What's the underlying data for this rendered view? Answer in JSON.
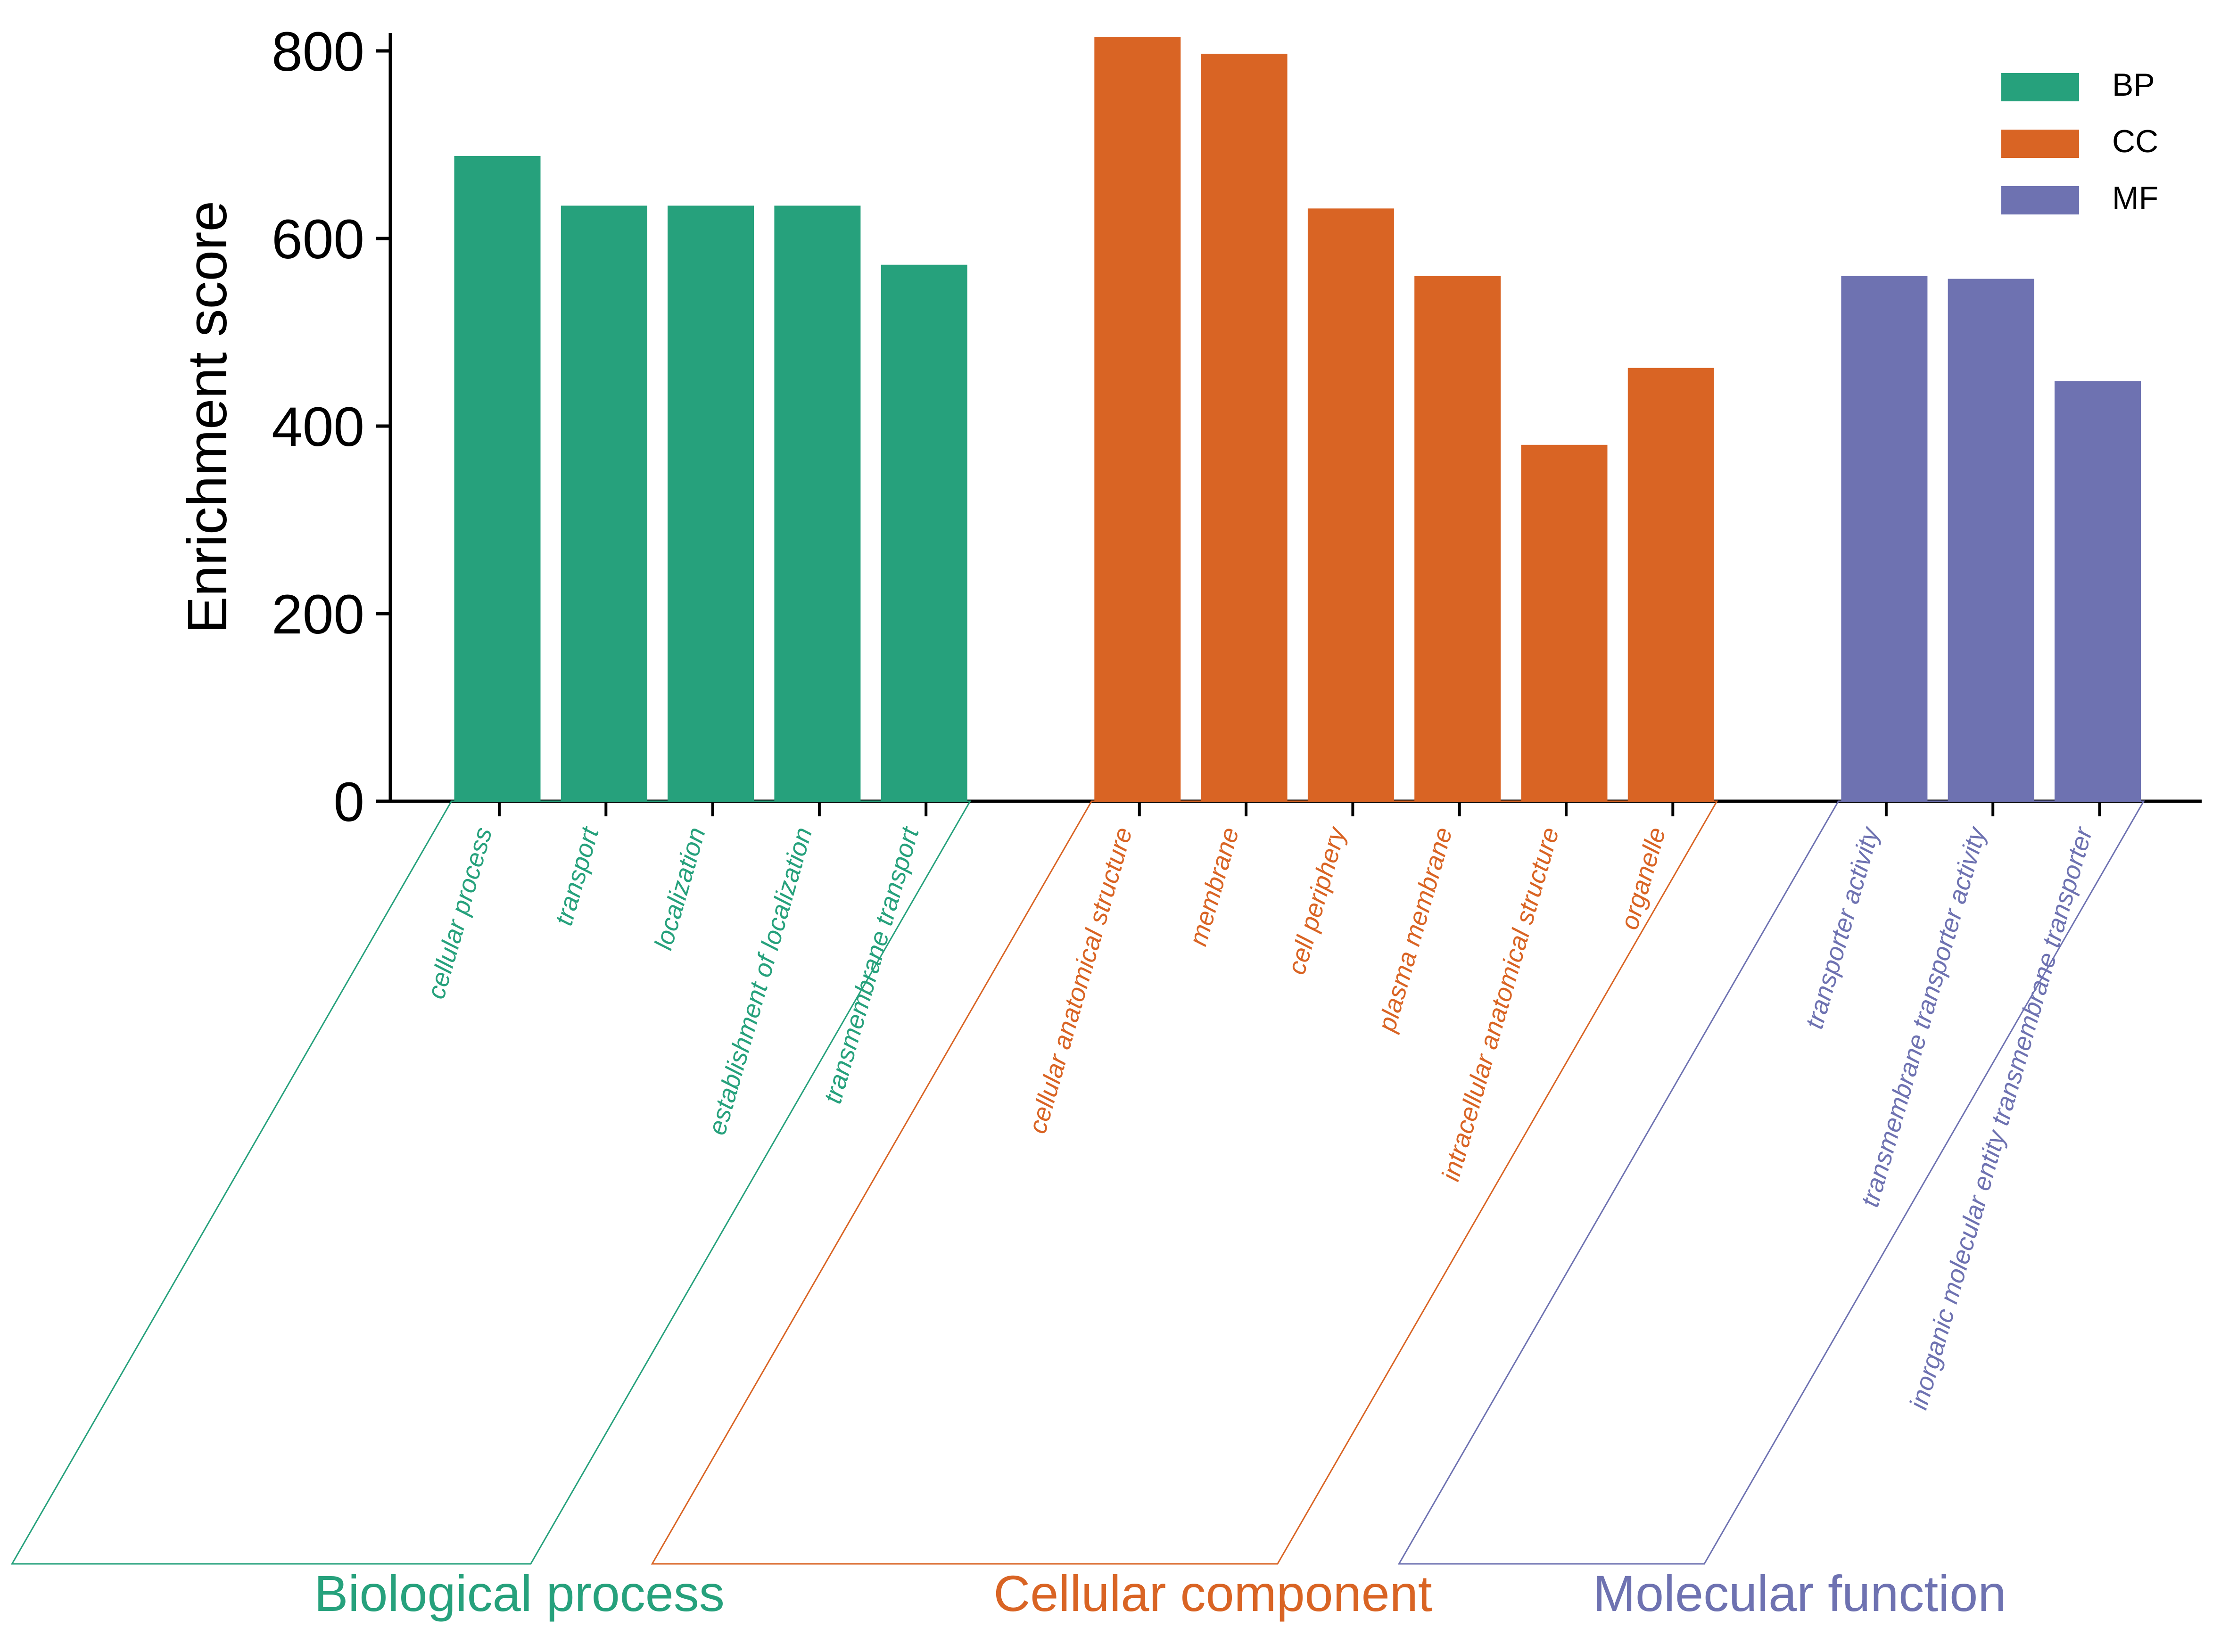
{
  "chart_data": {
    "type": "bar",
    "ylabel": "Enrichment score",
    "ylim": [
      0,
      800
    ],
    "yticks": [
      "0",
      "200",
      "400",
      "600",
      "800"
    ],
    "legend": {
      "placement": "top-right",
      "entries": [
        {
          "label": "BP",
          "color": "#26a17c"
        },
        {
          "label": "CC",
          "color": "#d96424"
        },
        {
          "label": "MF",
          "color": "#6e72b1"
        }
      ]
    },
    "groups": [
      {
        "name": "Biological process",
        "color": "#26a17c",
        "categories": [
          "cellular process",
          "transport",
          "localization",
          "establishment of localization",
          "transmembrane transport"
        ],
        "values": [
          688,
          635,
          635,
          635,
          572
        ]
      },
      {
        "name": "Cellular component",
        "color": "#d96424",
        "categories": [
          "cellular anatomical structure",
          "membrane",
          "cell periphery",
          "plasma membrane",
          "intracellular anatomical structure",
          "organelle"
        ],
        "values": [
          815,
          797,
          632,
          560,
          380,
          462
        ]
      },
      {
        "name": "Molecular function",
        "color": "#6e72b1",
        "categories": [
          "transporter activity",
          "transmembrane transporter activity",
          "inorganic molecular entity transmembrane transporter"
        ],
        "values": [
          560,
          557,
          448
        ]
      }
    ]
  }
}
